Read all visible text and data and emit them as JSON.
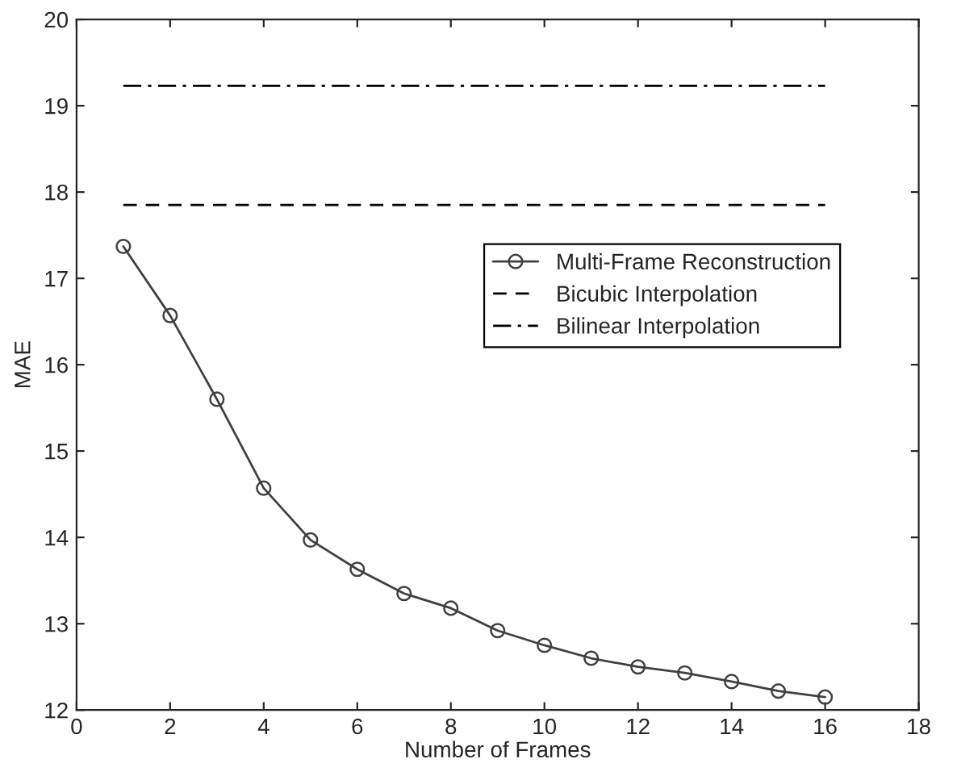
{
  "chart_data": {
    "type": "line",
    "xlabel": "Number of Frames",
    "ylabel": "MAE",
    "xlim": [
      0,
      18
    ],
    "xticks": [
      0,
      2,
      4,
      6,
      8,
      10,
      12,
      14,
      16,
      18
    ],
    "ylim": [
      12,
      20
    ],
    "yticks": [
      12,
      13,
      14,
      15,
      16,
      17,
      18,
      19,
      20
    ],
    "grid": false,
    "legend": "right",
    "series": [
      {
        "name": "Multi-Frame Reconstruction",
        "color": "#404040",
        "marker": "circle",
        "line_style": "solid",
        "x": [
          1,
          2,
          3,
          4,
          5,
          6,
          7,
          8,
          9,
          10,
          11,
          12,
          13,
          14,
          15,
          16
        ],
        "values": [
          17.37,
          16.57,
          15.6,
          14.57,
          13.97,
          13.63,
          13.35,
          13.18,
          12.92,
          12.75,
          12.6,
          12.5,
          12.43,
          12.33,
          12.22,
          12.15
        ]
      },
      {
        "name": "Bicubic Interpolation",
        "color": "#000000",
        "marker": "none",
        "line_style": "dashed",
        "x": [
          1,
          16
        ],
        "values": [
          17.85,
          17.85
        ]
      },
      {
        "name": "Bilinear Interpolation",
        "color": "#000000",
        "marker": "none",
        "line_style": "dashdot",
        "x": [
          1,
          16
        ],
        "values": [
          19.23,
          19.23
        ]
      }
    ]
  }
}
